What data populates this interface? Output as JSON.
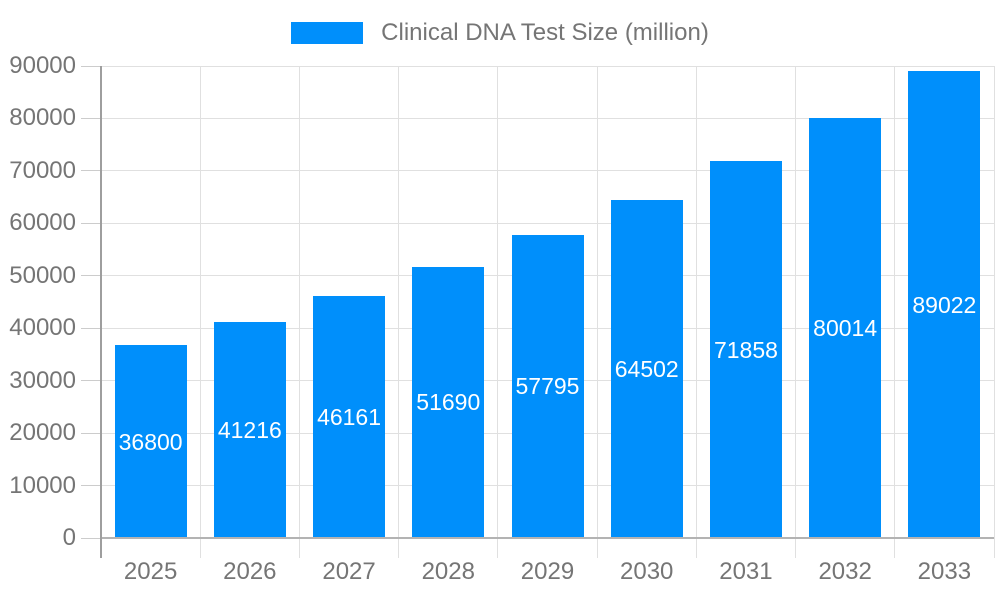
{
  "chart_data": {
    "type": "bar",
    "title": "",
    "series_name": "Clinical DNA Test Size (million)",
    "legend": {
      "position": "top",
      "entries": [
        "Clinical DNA Test Size (million)"
      ]
    },
    "categories": [
      "2025",
      "2026",
      "2027",
      "2028",
      "2029",
      "2030",
      "2031",
      "2032",
      "2033"
    ],
    "values": [
      36800,
      41216,
      46161,
      51690,
      57795,
      64502,
      71858,
      80014,
      89022
    ],
    "bar_labels": [
      "36800",
      "41216",
      "46161",
      "51690",
      "57795",
      "64502",
      "71858",
      "80014",
      "89022"
    ],
    "xlabel": "",
    "ylabel": "",
    "ylim": [
      0,
      90000
    ],
    "yticks": [
      0,
      10000,
      20000,
      30000,
      40000,
      50000,
      60000,
      70000,
      80000,
      90000
    ],
    "ytick_labels": [
      "0",
      "10000",
      "20000",
      "30000",
      "40000",
      "50000",
      "60000",
      "70000",
      "80000",
      "90000"
    ],
    "grid": true,
    "colors": {
      "bar": "#008ffb",
      "axis_label": "#757575",
      "bar_label": "#ffffff",
      "gridline": "#e0e0e0",
      "left_tick": "#cccccc",
      "bottom_tick": "#e0e0e0",
      "baseline": "#b3b3b3",
      "axis_line": "#9e9e9e",
      "background": "#ffffff"
    }
  }
}
